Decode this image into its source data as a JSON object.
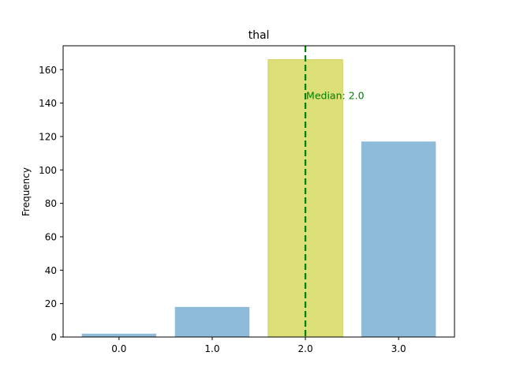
{
  "chart_data": {
    "type": "bar",
    "title": "thal",
    "xlabel": "",
    "ylabel": "Frequency",
    "categories": [
      "0.0",
      "1.0",
      "2.0",
      "3.0"
    ],
    "x": [
      0,
      1,
      2,
      3
    ],
    "values": [
      2,
      18,
      166,
      117
    ],
    "xlim": [
      -0.6,
      3.6
    ],
    "ylim": [
      0,
      174.3
    ],
    "yticks": [
      0,
      20,
      40,
      60,
      80,
      100,
      120,
      140,
      160
    ],
    "grid": false,
    "highlight_index": 2,
    "median": {
      "value": 2.0,
      "label": "Median: 2.0",
      "label_y": 140
    },
    "colors": {
      "bar": "#8fbbdb",
      "highlight": "#dcdf78",
      "highlight_edge": "#cfd25a",
      "median": "#008000",
      "axis": "#000000"
    }
  }
}
